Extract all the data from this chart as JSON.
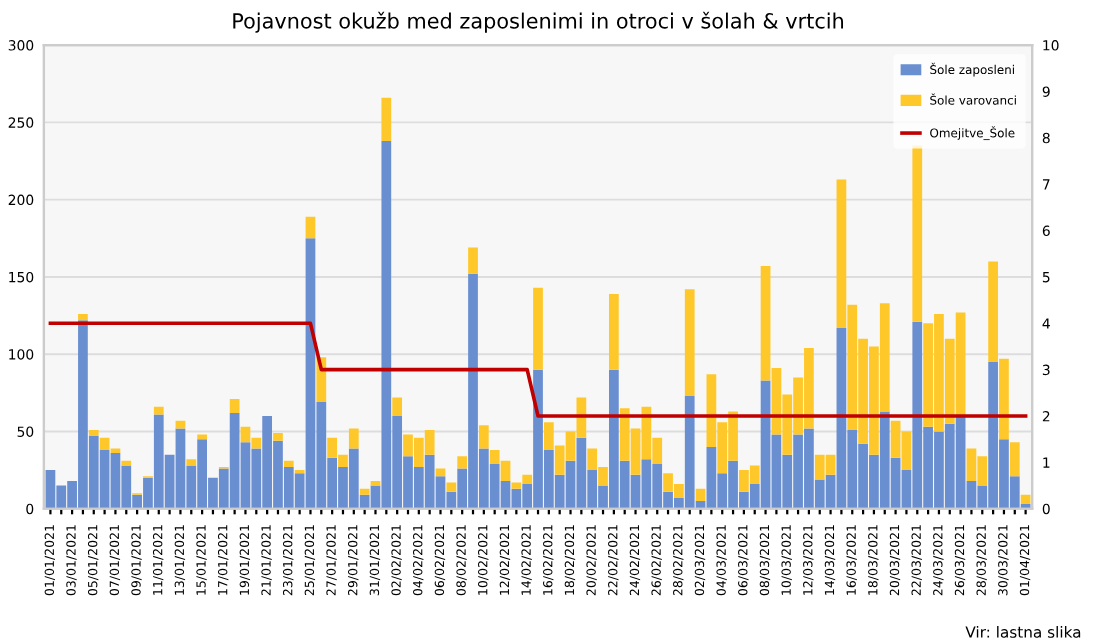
{
  "chart_data": {
    "type": "bar",
    "title": "Pojavnost okužb med zaposlenimi in otroci v šolah & vrtcih",
    "stacked": true,
    "categories": [
      "01/01/2021",
      null,
      "03/01/2021",
      null,
      "05/01/2021",
      null,
      "07/01/2021",
      null,
      "09/01/2021",
      null,
      "11/01/2021",
      null,
      "13/01/2021",
      null,
      "15/01/2021",
      null,
      "17/01/2021",
      null,
      "19/01/2021",
      null,
      "21/01/2021",
      null,
      "23/01/2021",
      null,
      "25/01/2021",
      null,
      "27/01/2021",
      null,
      "29/01/2021",
      null,
      "31/01/2021",
      null,
      "02/02/2021",
      null,
      "04/02/2021",
      null,
      "06/02/2021",
      null,
      "08/02/2021",
      null,
      "10/02/2021",
      null,
      "12/02/2021",
      null,
      "14/02/2021",
      null,
      "16/02/2021",
      null,
      "18/02/2021",
      null,
      "20/02/2021",
      null,
      "22/02/2021",
      null,
      "24/02/2021",
      null,
      "26/02/2021",
      null,
      "28/02/2021",
      null,
      "02/03/2021",
      null,
      "04/03/2021",
      null,
      "06/03/2021",
      null,
      "08/03/2021",
      null,
      "10/03/2021",
      null,
      "12/03/2021",
      null,
      "14/03/2021",
      null,
      "16/03/2021",
      null,
      "18/03/2021",
      null,
      "20/03/2021",
      null,
      "22/03/2021",
      null,
      "24/03/2021",
      null,
      "26/03/2021",
      null,
      "28/03/2021",
      null,
      "30/03/2021",
      null,
      "01/04/2021"
    ],
    "series": [
      {
        "name": "Šole zaposleni",
        "color": "#6a8fd1",
        "values": [
          25,
          15,
          18,
          122,
          47,
          38,
          36,
          28,
          9,
          20,
          61,
          35,
          52,
          28,
          45,
          20,
          26,
          62,
          43,
          39,
          60,
          44,
          27,
          23,
          175,
          69,
          33,
          27,
          39,
          9,
          15,
          238,
          60,
          34,
          27,
          35,
          21,
          11,
          26,
          152,
          39,
          29,
          18,
          13,
          16,
          90,
          38,
          22,
          31,
          46,
          25,
          15,
          90,
          31,
          22,
          32,
          29,
          11,
          7,
          73,
          5,
          40,
          23,
          31,
          11,
          16,
          83,
          48,
          35,
          48,
          52,
          19,
          22,
          117,
          51,
          42,
          35,
          63,
          33,
          25,
          121,
          53,
          50,
          55,
          60,
          18,
          15,
          95,
          45,
          21,
          3
        ]
      },
      {
        "name": "Šole varovanci",
        "color": "#ffc82a",
        "values": [
          0,
          0,
          0,
          4,
          4,
          8,
          3,
          3,
          1,
          1,
          5,
          0,
          5,
          4,
          3,
          0,
          1,
          9,
          10,
          7,
          0,
          5,
          4,
          2,
          14,
          29,
          13,
          8,
          13,
          4,
          3,
          28,
          12,
          14,
          19,
          16,
          5,
          6,
          8,
          17,
          15,
          9,
          13,
          4,
          6,
          53,
          18,
          19,
          19,
          26,
          14,
          12,
          49,
          34,
          30,
          34,
          17,
          12,
          9,
          69,
          8,
          47,
          33,
          32,
          14,
          12,
          74,
          43,
          39,
          37,
          52,
          16,
          13,
          96,
          81,
          68,
          70,
          70,
          24,
          25,
          114,
          67,
          76,
          55,
          67,
          21,
          19,
          65,
          52,
          22,
          6
        ]
      },
      {
        "name": "Omejitve_Šole",
        "color": "#c00000",
        "type": "line",
        "axis": "y2",
        "values": [
          4,
          4,
          4,
          4,
          4,
          4,
          4,
          4,
          4,
          4,
          4,
          4,
          4,
          4,
          4,
          4,
          4,
          4,
          4,
          4,
          4,
          4,
          4,
          4,
          4,
          3,
          3,
          3,
          3,
          3,
          3,
          3,
          3,
          3,
          3,
          3,
          3,
          3,
          3,
          3,
          3,
          3,
          3,
          3,
          3,
          2,
          2,
          2,
          2,
          2,
          2,
          2,
          2,
          2,
          2,
          2,
          2,
          2,
          2,
          2,
          2,
          2,
          2,
          2,
          2,
          2,
          2,
          2,
          2,
          2,
          2,
          2,
          2,
          2,
          2,
          2,
          2,
          2,
          2,
          2,
          2,
          2,
          2,
          2,
          2,
          2,
          2,
          2,
          2,
          2,
          2
        ]
      }
    ],
    "ylim": [
      0,
      300
    ],
    "yticks": [
      0,
      50,
      100,
      150,
      200,
      250,
      300
    ],
    "y2lim": [
      0,
      10
    ],
    "y2ticks": [
      0,
      1,
      2,
      3,
      4,
      5,
      6,
      7,
      8,
      9,
      10
    ],
    "grid": "y",
    "legend": "top right",
    "annotations": [
      "Vir: lastna slika"
    ]
  }
}
